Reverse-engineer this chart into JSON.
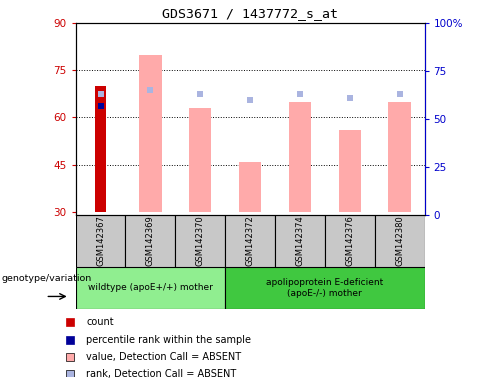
{
  "title": "GDS3671 / 1437772_s_at",
  "samples": [
    "GSM142367",
    "GSM142369",
    "GSM142370",
    "GSM142372",
    "GSM142374",
    "GSM142376",
    "GSM142380"
  ],
  "group_sizes": [
    3,
    4
  ],
  "ylim_left": [
    29,
    90
  ],
  "ylim_right": [
    0,
    100
  ],
  "yticks_left": [
    30,
    45,
    60,
    75,
    90
  ],
  "yticks_right": [
    0,
    25,
    50,
    75,
    100
  ],
  "ytick_labels_right": [
    "0",
    "25",
    "50",
    "75",
    "100%"
  ],
  "bar_bottom": 30,
  "count_values": [
    70,
    null,
    null,
    null,
    null,
    null,
    null
  ],
  "count_color": "#cc0000",
  "percentile_values": [
    63.5,
    null,
    null,
    null,
    null,
    null,
    null
  ],
  "percentile_color": "#000099",
  "value_absent_values": [
    null,
    80,
    63,
    46,
    65,
    56,
    65
  ],
  "value_absent_color": "#ffaaaa",
  "rank_absent_values": [
    63,
    65,
    63,
    60,
    63,
    61,
    63
  ],
  "rank_absent_color": "#aab4e0",
  "left_ax_color": "#cc0000",
  "right_ax_color": "#0000cc",
  "legend_items": [
    {
      "label": "count",
      "color": "#cc0000"
    },
    {
      "label": "percentile rank within the sample",
      "color": "#000099"
    },
    {
      "label": "value, Detection Call = ABSENT",
      "color": "#ffaaaa"
    },
    {
      "label": "rank, Detection Call = ABSENT",
      "color": "#aab4e0"
    }
  ],
  "genotype_label": "genotype/variation",
  "group1_label": "wildtype (apoE+/+) mother",
  "group2_label": "apolipoprotein E-deficient\n(apoE-/-) mother",
  "group1_color": "#90ee90",
  "group2_color": "#40c840",
  "sample_box_color": "#c8c8c8"
}
